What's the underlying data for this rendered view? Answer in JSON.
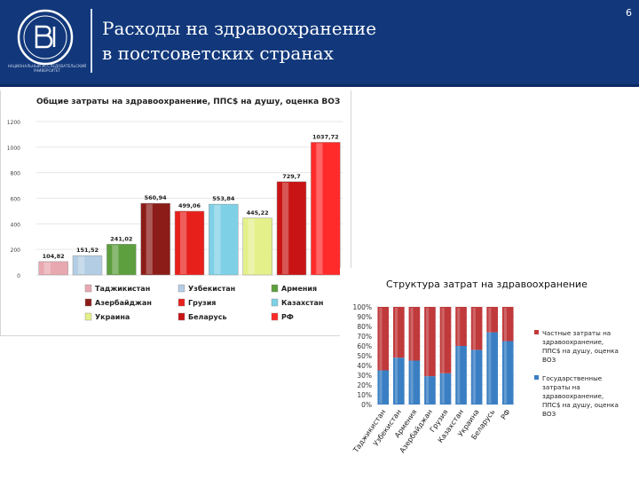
{
  "header": {
    "title_line1": "Расходы на здравоохранение",
    "title_line2": "в постсоветских странах",
    "page_number": "6",
    "logo_caption": "НАЦИОНАЛЬНЫЙ ИССЛЕДОВАТЕЛЬСКИЙ УНИВЕРСИТЕТ",
    "colors": {
      "background": "#12387b",
      "text": "#ffffff"
    }
  },
  "chart_data": [
    {
      "type": "bar",
      "title": "Общие затраты на здравоохранение, ППС$ на душу, оценка ВОЗ",
      "categories": [
        "Таджикистан",
        "Узбекистан",
        "Армения",
        "Азербайджан",
        "Грузия",
        "Казахстан",
        "Украина",
        "Беларусь",
        "РФ"
      ],
      "values": [
        104.82,
        151.52,
        241.02,
        560.94,
        499.06,
        553.84,
        445.22,
        729.7,
        1037.72
      ],
      "value_labels": [
        "104,82",
        "151,52",
        "241,02",
        "560,94",
        "499,06",
        "553,84",
        "445,22",
        "729,7",
        "1037,72"
      ],
      "colors": [
        "#e8a8b0",
        "#b3cde4",
        "#5d9e3e",
        "#8b1c18",
        "#e8201c",
        "#7ed0e6",
        "#e4f08a",
        "#c81414",
        "#ff2a2a"
      ],
      "yticks": [
        "0",
        "200",
        "400",
        "600",
        "800",
        "1000",
        "1200"
      ],
      "ylim": [
        0,
        1200
      ],
      "legend_position": "bottom",
      "legend": [
        "Таджикистан",
        "Узбекистан",
        "Армения",
        "Азербайджан",
        "Грузия",
        "Казахстан",
        "Украина",
        "Беларусь",
        "РФ"
      ]
    },
    {
      "type": "bar",
      "stacked": true,
      "title": "Структура затрат на здравоохранение",
      "categories": [
        "Таджикистан",
        "Узбекистан",
        "Армения",
        "Азербайджан",
        "Грузия",
        "Казахстан",
        "Украина",
        "Беларусь",
        "РФ"
      ],
      "series": [
        {
          "name": "Государственные затраты на здравоохранение, ППС$ на душу, оценка ВОЗ",
          "color": "#3a7fc3",
          "values": [
            35,
            48,
            45,
            29,
            32,
            60,
            56,
            74,
            65
          ]
        },
        {
          "name": "Частные затраты на здравоохранение, ППС$ на душу, оценка ВОЗ",
          "color": "#c0393b",
          "values": [
            65,
            52,
            55,
            71,
            68,
            40,
            44,
            26,
            35
          ]
        }
      ],
      "yticks": [
        "0%",
        "10%",
        "20%",
        "30%",
        "40%",
        "50%",
        "60%",
        "70%",
        "80%",
        "90%",
        "100%"
      ],
      "ylim": [
        0,
        100
      ],
      "legend_position": "right",
      "legend": [
        "Частные затраты на здравоохранение, ППС$ на душу, оценка ВОЗ",
        "Государственные затраты на здравоохранение, ППС$ на душу, оценка ВОЗ"
      ]
    }
  ]
}
